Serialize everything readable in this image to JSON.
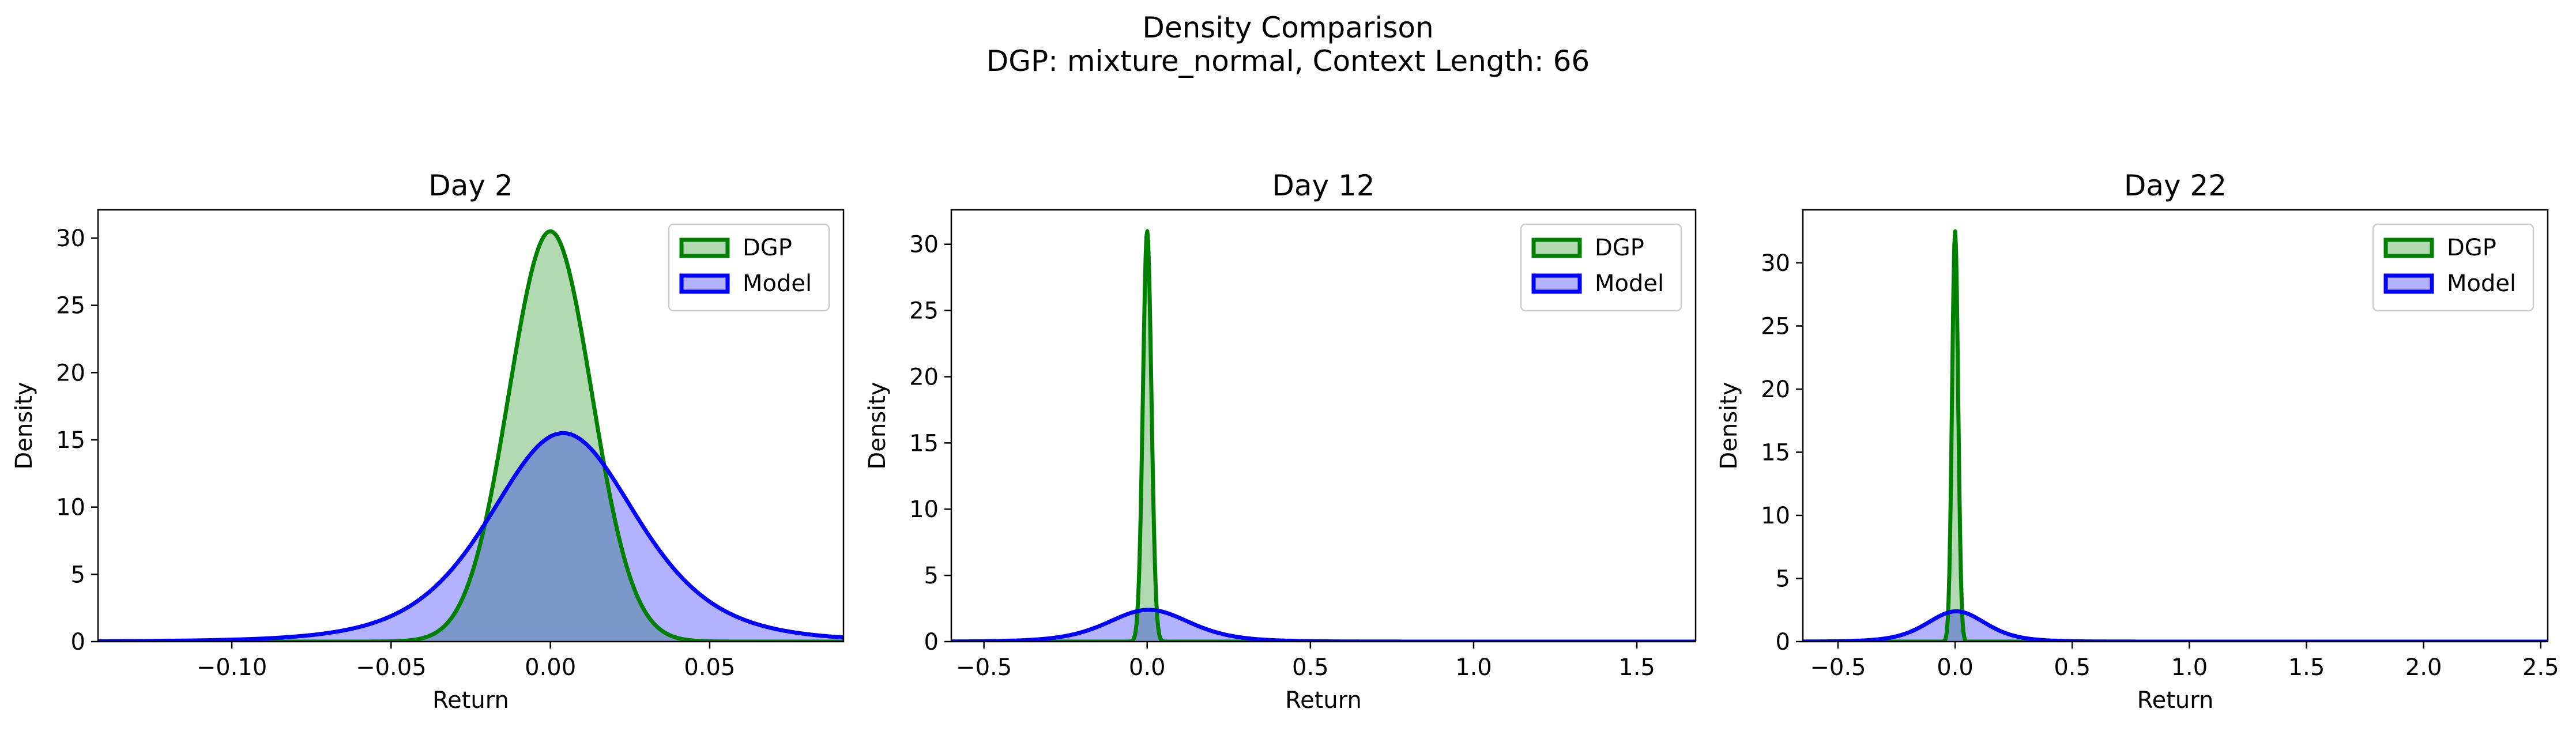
{
  "figure": {
    "title_line1": "Density Comparison",
    "title_line2": "DGP: mixture_normal, Context Length: 66"
  },
  "chart_data": [
    {
      "type": "area",
      "title": "Day 2",
      "xlabel": "Return",
      "ylabel": "Density",
      "xlim": [
        -0.142,
        0.092
      ],
      "ylim": [
        0,
        32.1
      ],
      "xticks": [
        -0.1,
        -0.05,
        0.0,
        0.05
      ],
      "xtick_labels": [
        "−0.10",
        "−0.05",
        "0.00",
        "0.05"
      ],
      "yticks": [
        0,
        5,
        10,
        15,
        20,
        25,
        30
      ],
      "ytick_labels": [
        "0",
        "5",
        "10",
        "15",
        "20",
        "25",
        "30"
      ],
      "grid": false,
      "legend": "top-right",
      "series": [
        {
          "name": "DGP",
          "dist": "normal",
          "peak_x": 0.0,
          "peak_y": 30.5,
          "sd": 0.013,
          "line_color": "#008000",
          "fill_color": "#008000",
          "fill_opacity": 0.3
        },
        {
          "name": "Model",
          "dist": "t",
          "peak_x": 0.004,
          "peak_y": 15.5,
          "sd": 0.024,
          "df": 5,
          "line_color": "#0000ff",
          "fill_color": "#0000ff",
          "fill_opacity": 0.3
        }
      ]
    },
    {
      "type": "area",
      "title": "Day 12",
      "xlabel": "Return",
      "ylabel": "Density",
      "xlim": [
        -0.6,
        1.68
      ],
      "ylim": [
        0,
        32.6
      ],
      "xticks": [
        -0.5,
        0.0,
        0.5,
        1.0,
        1.5
      ],
      "xtick_labels": [
        "−0.5",
        "0.0",
        "0.5",
        "1.0",
        "1.5"
      ],
      "yticks": [
        0,
        5,
        10,
        15,
        20,
        25,
        30
      ],
      "ytick_labels": [
        "0",
        "5",
        "10",
        "15",
        "20",
        "25",
        "30"
      ],
      "grid": false,
      "legend": "top-right",
      "series": [
        {
          "name": "DGP",
          "dist": "normal",
          "peak_x": 0.0,
          "peak_y": 31.0,
          "sd": 0.013,
          "line_color": "#008000",
          "fill_color": "#008000",
          "fill_opacity": 0.3
        },
        {
          "name": "Model",
          "dist": "t",
          "peak_x": 0.005,
          "peak_y": 2.4,
          "sd": 0.13,
          "df": 6,
          "line_color": "#0000ff",
          "fill_color": "#0000ff",
          "fill_opacity": 0.3
        }
      ]
    },
    {
      "type": "area",
      "title": "Day 22",
      "xlabel": "Return",
      "ylabel": "Density",
      "xlim": [
        -0.65,
        2.53
      ],
      "ylim": [
        0,
        34.2
      ],
      "xticks": [
        -0.5,
        0.0,
        0.5,
        1.0,
        1.5,
        2.0,
        2.5
      ],
      "xtick_labels": [
        "−0.5",
        "0.0",
        "0.5",
        "1.0",
        "1.5",
        "2.0",
        "2.5"
      ],
      "yticks": [
        0,
        5,
        10,
        15,
        20,
        25,
        30
      ],
      "ytick_labels": [
        "0",
        "5",
        "10",
        "15",
        "20",
        "25",
        "30"
      ],
      "grid": false,
      "legend": "top-right",
      "series": [
        {
          "name": "DGP",
          "dist": "normal",
          "peak_x": 0.0,
          "peak_y": 32.5,
          "sd": 0.013,
          "line_color": "#008000",
          "fill_color": "#008000",
          "fill_opacity": 0.3
        },
        {
          "name": "Model",
          "dist": "t",
          "peak_x": 0.005,
          "peak_y": 2.4,
          "sd": 0.13,
          "df": 6,
          "line_color": "#0000ff",
          "fill_color": "#0000ff",
          "fill_opacity": 0.3
        }
      ]
    }
  ]
}
